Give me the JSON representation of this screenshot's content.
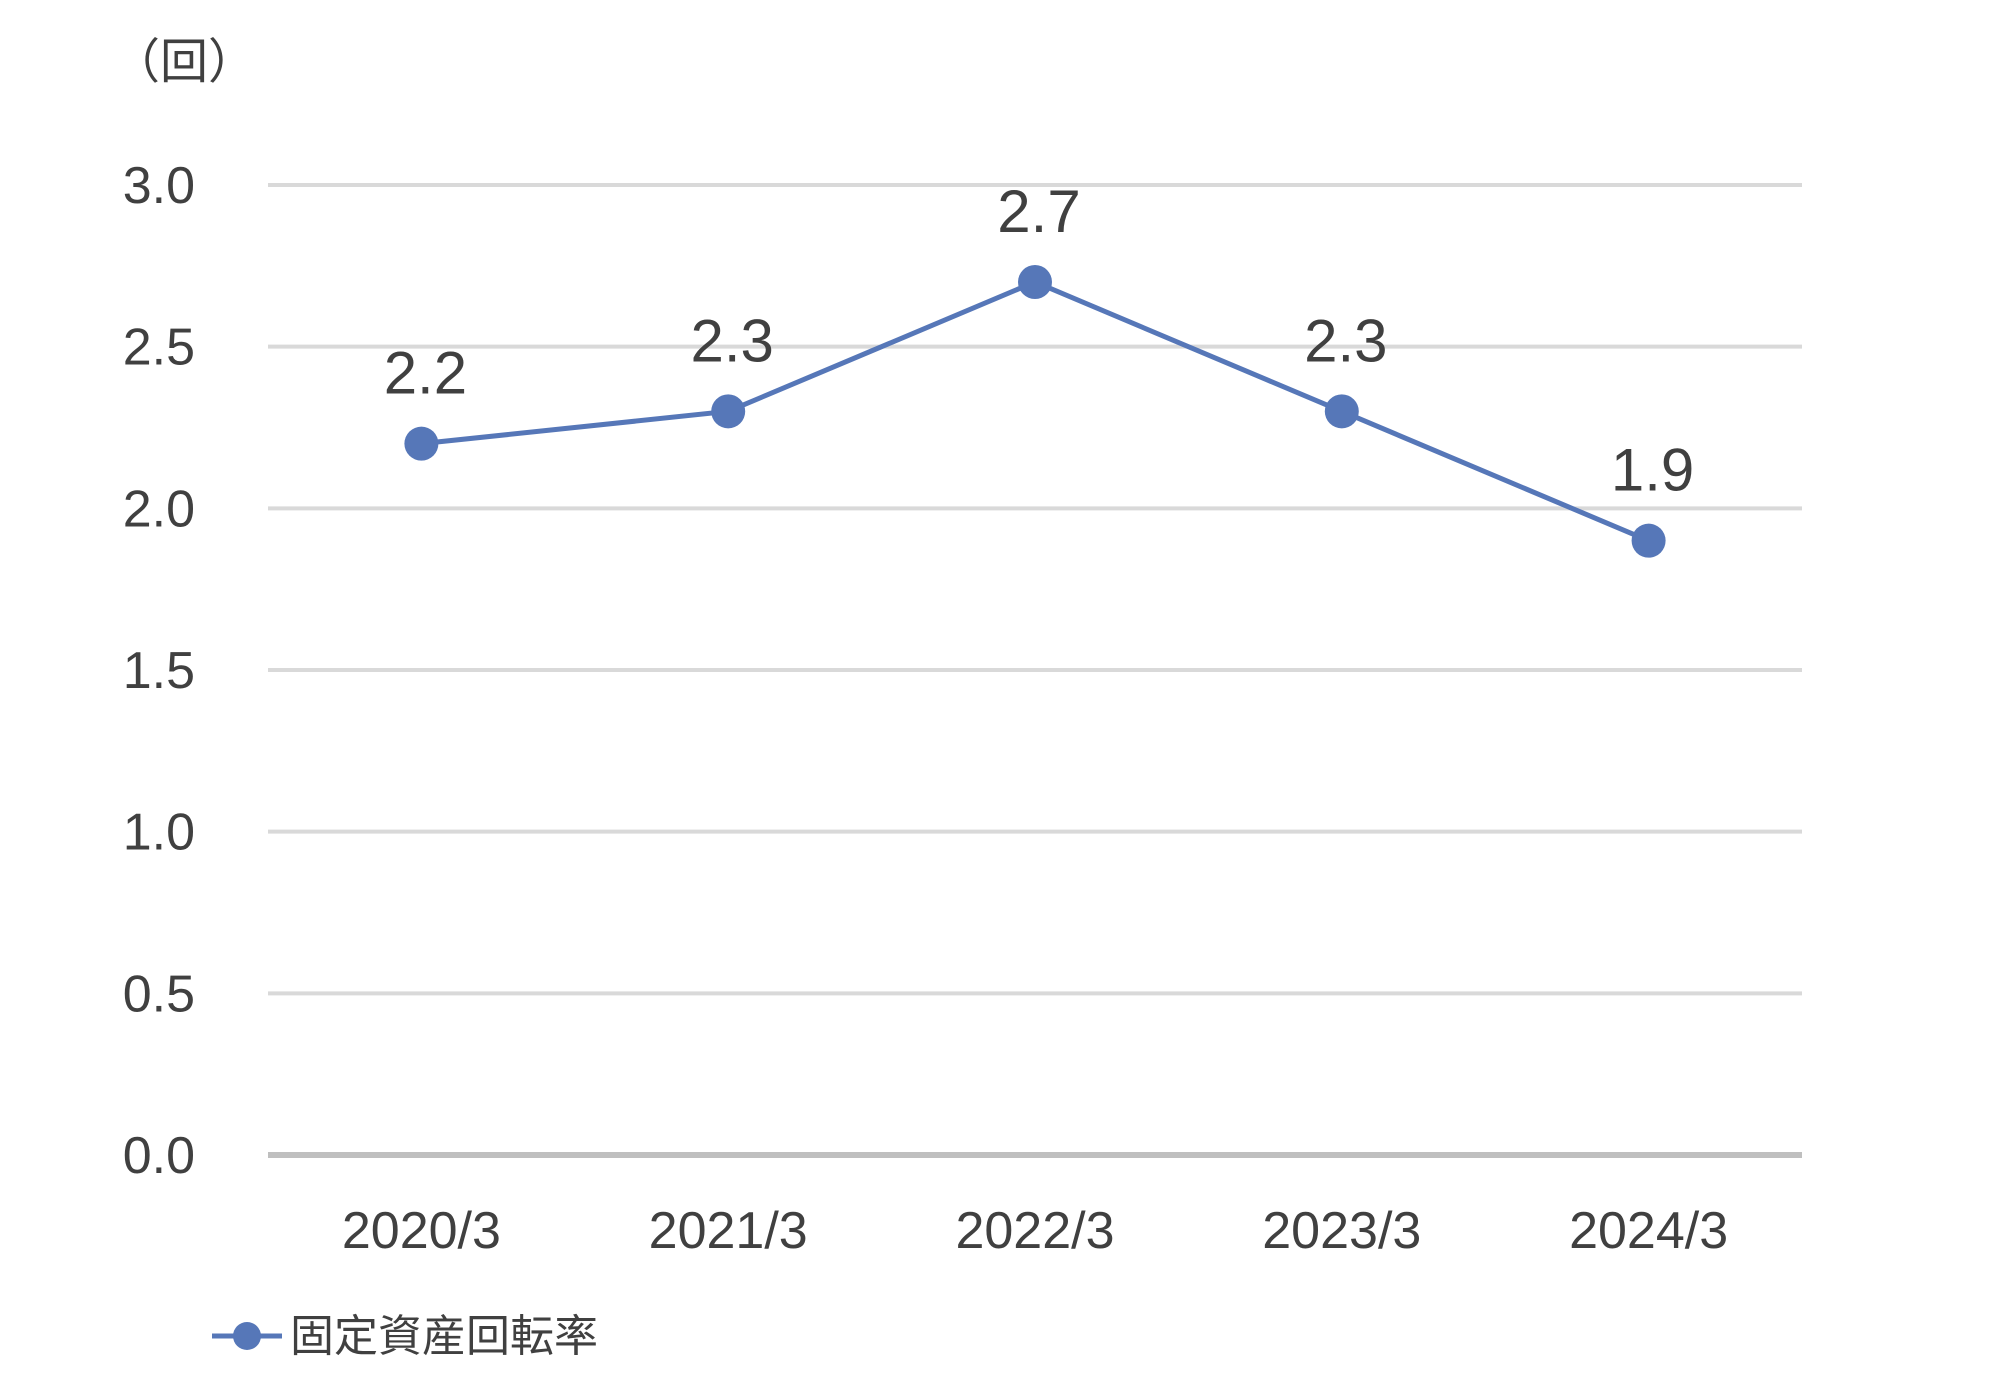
{
  "chart_data": {
    "type": "line",
    "y_unit_label": "（回）",
    "categories": [
      "2020/3",
      "2021/3",
      "2022/3",
      "2023/3",
      "2024/3"
    ],
    "series": [
      {
        "name": "固定資産回転率",
        "values": [
          2.2,
          2.3,
          2.7,
          2.3,
          1.9
        ],
        "color": "#5677b8"
      }
    ],
    "data_labels": [
      "2.2",
      "2.3",
      "2.7",
      "2.3",
      "1.9"
    ],
    "y_ticks": [
      "0.0",
      "0.5",
      "1.0",
      "1.5",
      "2.0",
      "2.5",
      "3.0"
    ],
    "ylim": [
      0,
      3.0
    ],
    "grid": true,
    "legend_position": "bottom-left"
  }
}
